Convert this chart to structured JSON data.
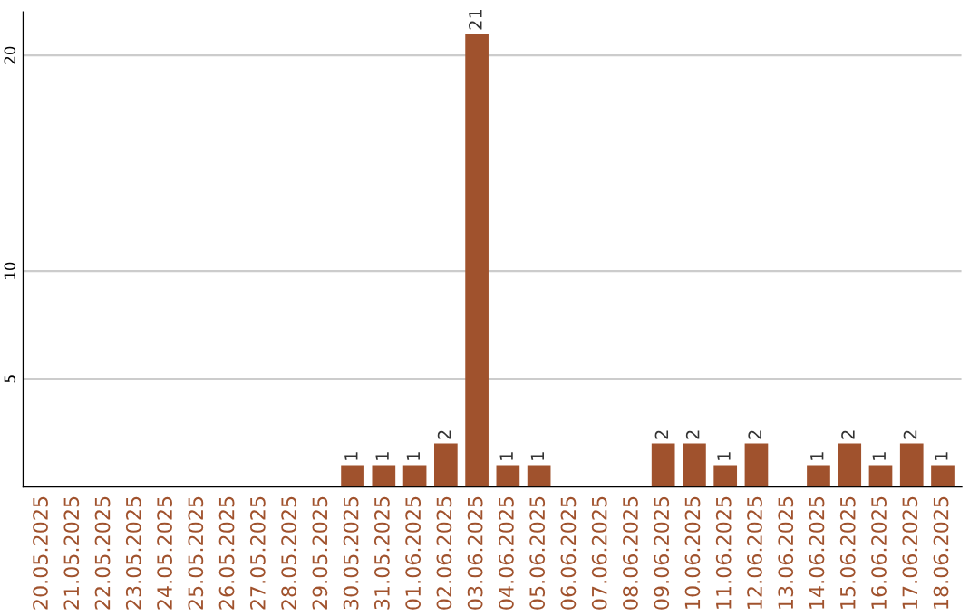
{
  "chart_data": {
    "type": "bar",
    "categories": [
      "20.05.2025",
      "21.05.2025",
      "22.05.2025",
      "23.05.2025",
      "24.05.2025",
      "25.05.2025",
      "26.05.2025",
      "27.05.2025",
      "28.05.2025",
      "29.05.2025",
      "30.05.2025",
      "31.05.2025",
      "01.06.2025",
      "02.06.2025",
      "03.06.2025",
      "04.06.2025",
      "05.06.2025",
      "06.06.2025",
      "07.06.2025",
      "08.06.2025",
      "09.06.2025",
      "10.06.2025",
      "11.06.2025",
      "12.06.2025",
      "13.06.2025",
      "14.06.2025",
      "15.06.2025",
      "16.06.2025",
      "17.06.2025",
      "18.06.2025"
    ],
    "values": [
      0,
      0,
      0,
      0,
      0,
      0,
      0,
      0,
      0,
      0,
      1,
      1,
      1,
      2,
      21,
      1,
      1,
      0,
      0,
      0,
      2,
      2,
      1,
      2,
      0,
      1,
      2,
      1,
      2,
      1
    ],
    "value_labels": [
      null,
      null,
      null,
      null,
      null,
      null,
      null,
      null,
      null,
      null,
      "1",
      "1",
      "1",
      "2",
      "21",
      "1",
      "1",
      null,
      null,
      null,
      "2",
      "2",
      "1",
      "2",
      null,
      "1",
      "2",
      "1",
      "2",
      "1"
    ],
    "color": "#a0522d",
    "ylim": [
      0,
      22
    ],
    "yticks": [
      5,
      10,
      20
    ],
    "grid": "y"
  }
}
